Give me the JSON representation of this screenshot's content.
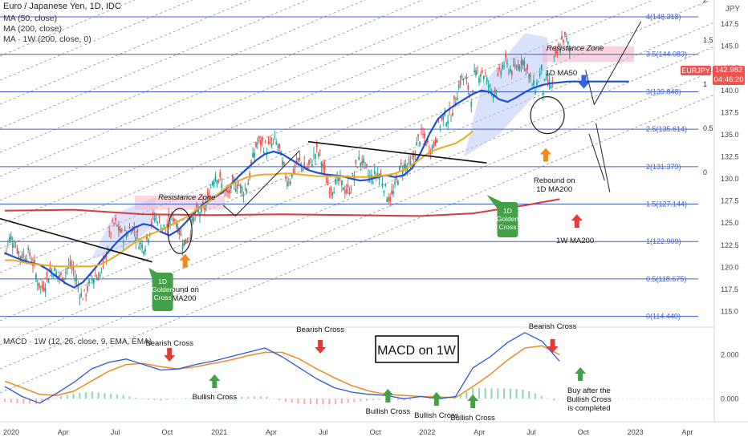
{
  "header": {
    "symbol_title": "Euro / Japanese Yen, 1D, IDC",
    "ma_lines": [
      "MA (50, close)",
      "MA (200, close)",
      "MA · 1W (200, close, 0)"
    ],
    "currency": "JPY"
  },
  "price_marker": {
    "ticker": "EURJPY",
    "price": "142.982",
    "countdown": "04:46:20"
  },
  "colors": {
    "ma50": "#1e4fd8",
    "ma200_1d": "#f0a81c",
    "ma200_1w": "#d63a3a",
    "fib": "#3f5fd6",
    "up_arrow": "#f08a17",
    "down_arrow": "#e53935",
    "green": "#43a047",
    "macd": "#2c56e0",
    "signal": "#f08a24"
  },
  "chart_data": [
    {
      "type": "line",
      "title": "Euro / Japanese Yen, 1D, IDC",
      "ylabel": "JPY",
      "ylim": [
        113.5,
        149.5
      ],
      "y_ticks": [
        115.0,
        117.5,
        120.0,
        122.5,
        125.0,
        127.5,
        130.0,
        132.5,
        135.0,
        137.5,
        140.0,
        142.5,
        145.0,
        147.5
      ],
      "x_ticks": [
        "2020",
        "Apr",
        "Jul",
        "Oct",
        "2021",
        "Apr",
        "Jul",
        "Oct",
        "2022",
        "Apr",
        "Jul",
        "Oct",
        "2023",
        "Apr"
      ],
      "x_range_months": [
        0,
        40
      ],
      "fib_levels": [
        {
          "label": "0(114.440)",
          "value": 114.44
        },
        {
          "label": "0.5(118.675)",
          "value": 118.675
        },
        {
          "label": "1(122.909)",
          "value": 122.909
        },
        {
          "label": "1.5(127.144)",
          "value": 127.144
        },
        {
          "label": "2(131.379)",
          "value": 131.379
        },
        {
          "label": "2.5(135.614)",
          "value": 135.614
        },
        {
          "label": "3(139.848)",
          "value": 139.848
        },
        {
          "label": "3.5(144.083)",
          "value": 144.083
        },
        {
          "label": "4(148.318)",
          "value": 148.318
        }
      ],
      "channel_labels": [
        "2",
        "1.5",
        "1",
        "0.5",
        "0"
      ],
      "series": [
        {
          "name": "MA (50, close)",
          "x": [
            0,
            0.5,
            1,
            1.5,
            2,
            2.5,
            3,
            3.5,
            4,
            4.5,
            5,
            5.5,
            6,
            6.5,
            7,
            7.5,
            8,
            8.5,
            9,
            9.5,
            10,
            10.5,
            11,
            11.5,
            12,
            12.5,
            13,
            13.5,
            14,
            14.5,
            15,
            15.5,
            16,
            16.5,
            17,
            17.5,
            18,
            18.5,
            19,
            19.5,
            20,
            20.5,
            21,
            21.5,
            22,
            22.5,
            23,
            23.5,
            24,
            24.5,
            25,
            25.5,
            26,
            26.5,
            27,
            27.5,
            28,
            28.5,
            29,
            29.5,
            30,
            30.5,
            31,
            31.5,
            32,
            32.5,
            33,
            33.5,
            34,
            34.5,
            35,
            35.5,
            36
          ],
          "values": [
            121.6,
            121.2,
            120.8,
            120.5,
            120.3,
            119.7,
            118.9,
            118.2,
            117.7,
            118.3,
            119.4,
            120.6,
            121.8,
            122.9,
            123.8,
            124.5,
            124.9,
            124.7,
            124.0,
            123.6,
            124.2,
            125.2,
            126.3,
            127.2,
            127.8,
            128.4,
            129.3,
            130.3,
            131.2,
            132.1,
            132.8,
            133.1,
            132.8,
            132.2,
            131.6,
            131.0,
            130.7,
            130.5,
            130.4,
            130.3,
            130.0,
            129.8,
            129.9,
            130.2,
            130.4,
            130.2,
            130.4,
            131.2,
            133.0,
            135.1,
            136.8,
            137.7,
            138.4,
            139.0,
            139.6,
            140.0,
            139.8,
            139.0,
            138.7,
            139.2,
            139.8,
            140.3,
            140.6,
            140.8,
            140.9,
            141.0,
            141.0,
            141.0,
            141.0,
            141.0,
            141.0,
            141.0,
            141.0
          ]
        },
        {
          "name": "MA (200, close)",
          "x": [
            0,
            0.5,
            1,
            1.5,
            2,
            2.5,
            3,
            3.5,
            4,
            4.5,
            5,
            5.5,
            6,
            6.5,
            7,
            7.5,
            8,
            8.5,
            9,
            9.5,
            10,
            10.5,
            11,
            11.5,
            12,
            12.5,
            13,
            13.5,
            14,
            14.5,
            15,
            15.5,
            16,
            16.5,
            17,
            17.5,
            18,
            18.5,
            19,
            19.5,
            20,
            20.5,
            21,
            21.5,
            22,
            22.5,
            23,
            23.5,
            24,
            24.5,
            25,
            25.5,
            26,
            26.5,
            27
          ],
          "values": [
            120.8,
            120.8,
            120.6,
            120.4,
            120.3,
            120.2,
            120.1,
            120.1,
            120.1,
            120.1,
            120.1,
            120.3,
            120.8,
            121.4,
            122.1,
            122.8,
            123.4,
            123.8,
            124.2,
            124.7,
            125.2,
            125.7,
            126.4,
            127.0,
            127.8,
            128.6,
            129.3,
            129.8,
            130.2,
            130.4,
            130.5,
            130.5,
            130.6,
            130.6,
            130.5,
            130.4,
            130.3,
            130.3,
            130.3,
            130.3,
            130.2,
            130.2,
            130.2,
            130.3,
            130.4,
            130.6,
            131.0,
            131.6,
            132.3,
            133.0,
            133.4,
            133.7,
            134.0,
            134.6,
            135.4
          ]
        },
        {
          "name": "MA · 1W (200, close, 0)",
          "x": [
            0,
            4,
            8,
            12,
            16,
            20,
            24,
            27,
            28,
            30,
            32
          ],
          "values": [
            126.4,
            126.5,
            126.0,
            125.9,
            126.0,
            125.9,
            125.8,
            126.1,
            126.4,
            127.0,
            127.7
          ]
        }
      ],
      "annotations": [
        "Resistance Zone",
        "Resistance Zone",
        "1D MA50",
        "Rebound on 1D MA200",
        "Rebound on 1D MA200",
        "1D Golden Cross",
        "1D Golden Cross",
        "1W MA200"
      ]
    },
    {
      "type": "line",
      "title": "MACD · 1W (12, 26, close, 9, EMA, EMA)",
      "ylim": [
        -0.9,
        3.1
      ],
      "y_ticks": [
        0.0,
        2.0
      ],
      "y_tick_labels": [
        "0.000",
        "2.000"
      ],
      "series": [
        {
          "name": "MACD",
          "x": [
            0,
            1,
            2,
            3,
            4,
            5,
            6,
            7,
            8,
            9,
            10,
            11,
            12,
            13,
            14,
            15,
            16,
            17,
            18,
            19,
            20,
            21,
            22,
            23,
            24,
            25,
            26,
            27,
            28,
            29,
            30,
            31,
            32
          ],
          "values": [
            0.55,
            0.1,
            -0.2,
            0.25,
            0.75,
            1.35,
            1.65,
            1.8,
            1.55,
            1.3,
            1.35,
            1.55,
            1.7,
            1.9,
            2.1,
            2.3,
            1.9,
            1.4,
            0.9,
            0.5,
            0.3,
            0.2,
            0.15,
            0.0,
            0.1,
            0.0,
            0.1,
            1.4,
            1.9,
            2.55,
            3.0,
            2.6,
            1.7
          ]
        },
        {
          "name": "Signal",
          "x": [
            0,
            1,
            2,
            3,
            4,
            5,
            6,
            7,
            8,
            9,
            10,
            11,
            12,
            13,
            14,
            15,
            16,
            17,
            18,
            19,
            20,
            21,
            22,
            23,
            24,
            25,
            26,
            27,
            28,
            29,
            30,
            31,
            32
          ],
          "values": [
            0.8,
            0.5,
            0.2,
            0.15,
            0.35,
            0.8,
            1.25,
            1.55,
            1.6,
            1.45,
            1.35,
            1.45,
            1.6,
            1.75,
            1.95,
            2.1,
            2.1,
            1.8,
            1.35,
            0.95,
            0.6,
            0.35,
            0.2,
            0.15,
            0.1,
            0.08,
            0.05,
            0.55,
            1.1,
            1.75,
            2.3,
            2.4,
            2.0
          ]
        }
      ],
      "annotations": [
        "Bearish Cross",
        "Bullish Cross",
        "Bearish Cross",
        "Bullish Cross",
        "Bullish Cross",
        "Bullish Cross",
        "Bearish Cross",
        "Buy after the Bullish Cross is completed"
      ],
      "badge": "MACD on 1W"
    }
  ]
}
